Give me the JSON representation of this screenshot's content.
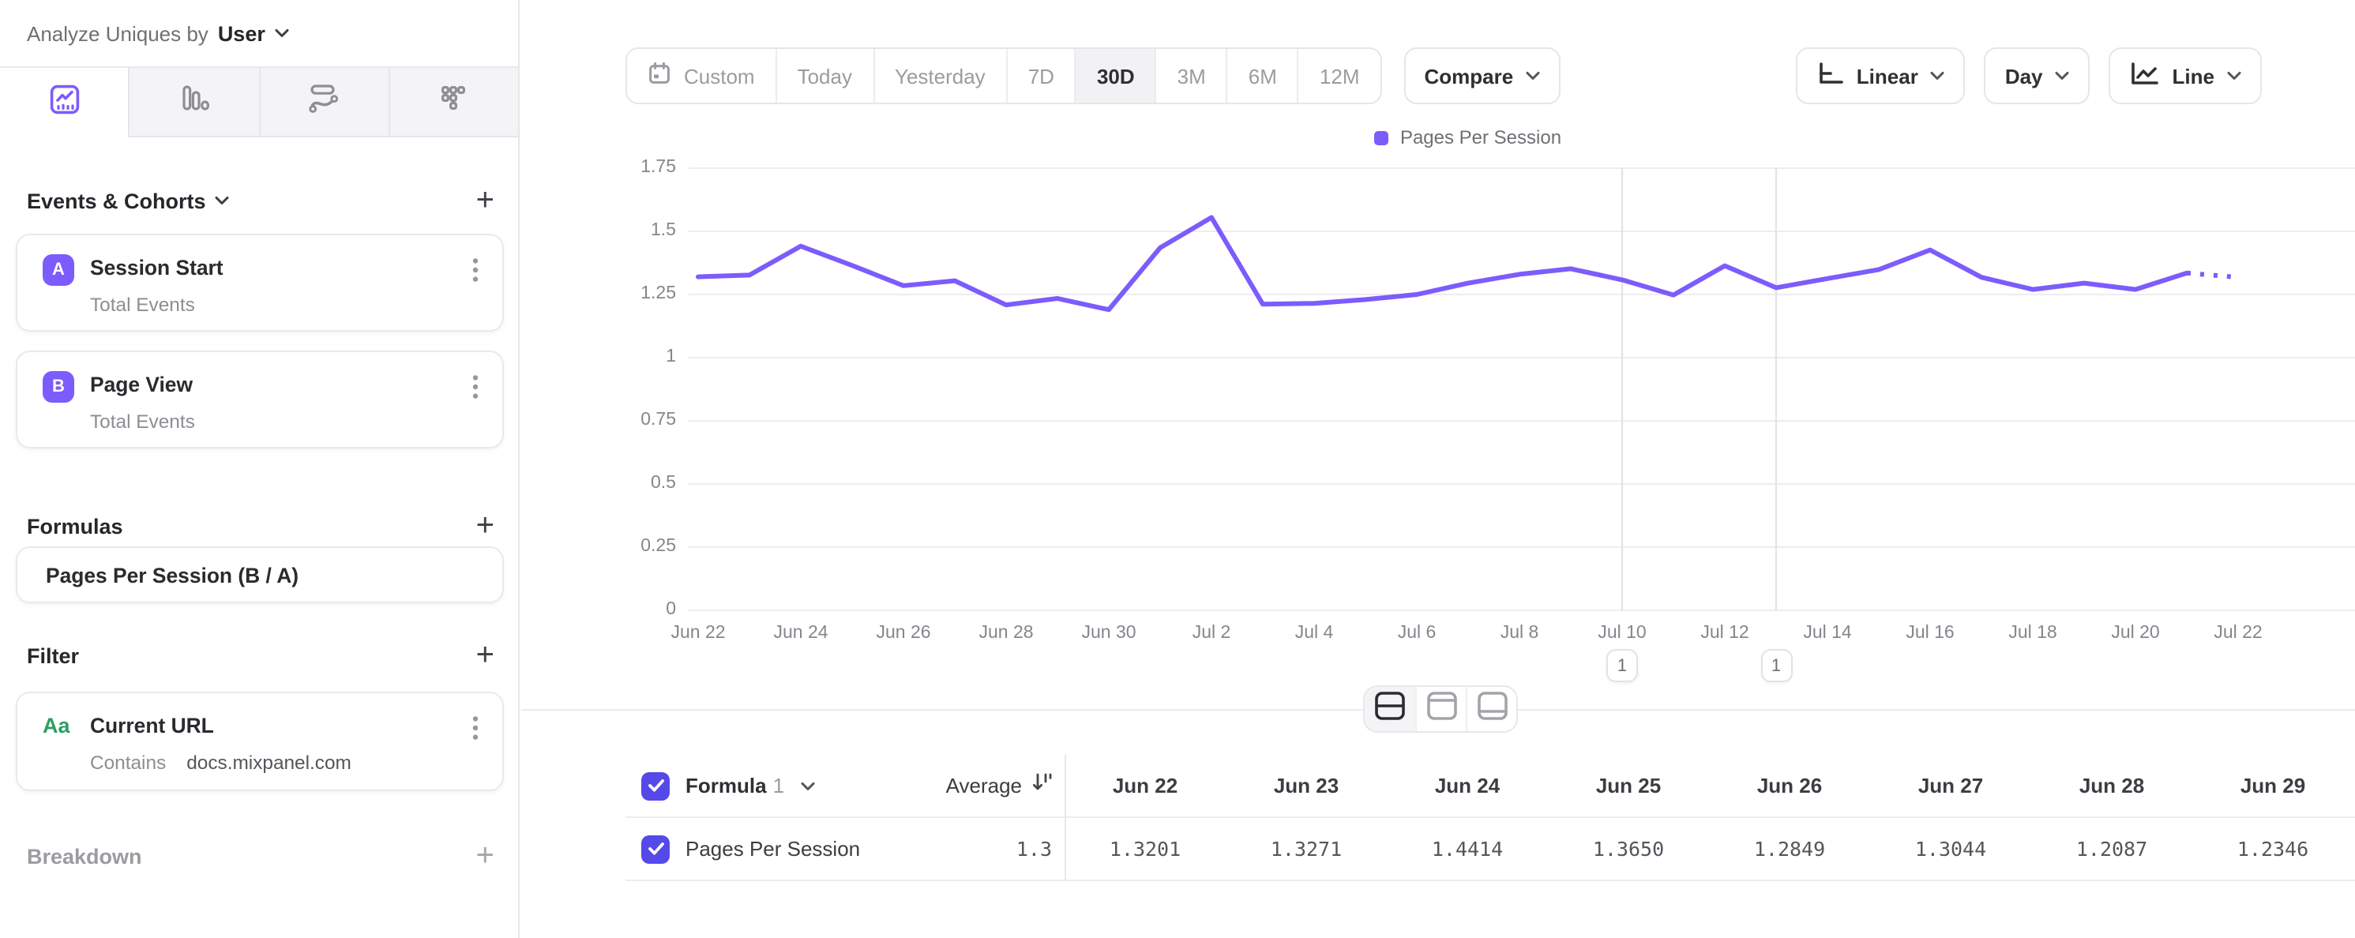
{
  "icons": {
    "plus": "+"
  },
  "colors": {
    "accent_purple": "#7C5CFC",
    "checkbox_purple": "#5549E9",
    "filter_green": "#2E9E63",
    "grid_line": "#EDEDF0",
    "annotation_line": "#E3E3E8",
    "selected_range_bg": "#F2F2F4"
  },
  "sidebar": {
    "analyze_label": "Analyze Uniques by",
    "analyze_value": "User",
    "tabs": [
      {
        "name": "insights",
        "selected": true
      },
      {
        "name": "bar-chart",
        "selected": false
      },
      {
        "name": "flows",
        "selected": false
      },
      {
        "name": "funnels-grid",
        "selected": false
      }
    ],
    "events": {
      "title": "Events & Cohorts",
      "cards": [
        {
          "letter": "A",
          "title": "Session Start",
          "subtitle": "Total Events"
        },
        {
          "letter": "B",
          "title": "Page View",
          "subtitle": "Total Events"
        }
      ]
    },
    "formulas": {
      "title": "Formulas",
      "card_label": "Pages Per Session (B / A)"
    },
    "filter": {
      "title": "Filter",
      "card": {
        "type_label": "Aa",
        "title": "Current URL",
        "operator": "Contains",
        "value": "docs.mixpanel.com"
      }
    },
    "breakdown": {
      "title": "Breakdown"
    }
  },
  "toolbar": {
    "ranges": [
      "Custom",
      "Today",
      "Yesterday",
      "7D",
      "30D",
      "3M",
      "6M",
      "12M"
    ],
    "selected_range": "30D",
    "compare_label": "Compare",
    "scale_label": "Linear",
    "interval_label": "Day",
    "chart_type_label": "Line"
  },
  "chart_data": {
    "type": "line",
    "title": "",
    "legend_position": "top-center",
    "grid": true,
    "ylim": [
      0,
      1.75
    ],
    "yticks": [
      "0",
      "0.25",
      "0.5",
      "0.75",
      "1",
      "1.25",
      "1.5",
      "1.75"
    ],
    "xtick_step": 2,
    "dates": [
      "Jun 22",
      "Jun 23",
      "Jun 24",
      "Jun 25",
      "Jun 26",
      "Jun 27",
      "Jun 28",
      "Jun 29",
      "Jun 30",
      "Jul 1",
      "Jul 2",
      "Jul 3",
      "Jul 4",
      "Jul 5",
      "Jul 6",
      "Jul 7",
      "Jul 8",
      "Jul 9",
      "Jul 10",
      "Jul 11",
      "Jul 12",
      "Jul 13",
      "Jul 14",
      "Jul 15",
      "Jul 16",
      "Jul 17",
      "Jul 18",
      "Jul 19",
      "Jul 20",
      "Jul 21",
      "Jul 22"
    ],
    "series": [
      {
        "name": "Pages Per Session",
        "color": "#7C5CFC",
        "values": [
          1.3201,
          1.3271,
          1.4414,
          1.365,
          1.2849,
          1.3044,
          1.2087,
          1.2346,
          1.19,
          1.435,
          1.555,
          1.212,
          1.215,
          1.23,
          1.25,
          1.295,
          1.33,
          1.352,
          1.308,
          1.248,
          1.364,
          1.277,
          1.313,
          1.349,
          1.426,
          1.318,
          1.27,
          1.295,
          1.27,
          1.335,
          1.318
        ]
      }
    ],
    "dashed_from_index": 29,
    "annotations": [
      {
        "date": "Jul 10",
        "label": "1"
      },
      {
        "date": "Jul 13",
        "label": "1"
      }
    ]
  },
  "table": {
    "group_label": "Formula",
    "group_index": "1",
    "average_label": "Average",
    "columns": [
      "Jun 22",
      "Jun 23",
      "Jun 24",
      "Jun 25",
      "Jun 26",
      "Jun 27",
      "Jun 28",
      "Jun 29"
    ],
    "rows": [
      {
        "checked": true,
        "label": "Pages Per Session",
        "average": "1.3",
        "values": [
          "1.3201",
          "1.3271",
          "1.4414",
          "1.3650",
          "1.2849",
          "1.3044",
          "1.2087",
          "1.2346"
        ]
      }
    ]
  },
  "view_toggles": [
    {
      "name": "split-view",
      "selected": true
    },
    {
      "name": "chart-only",
      "selected": false
    },
    {
      "name": "table-only",
      "selected": false
    }
  ]
}
